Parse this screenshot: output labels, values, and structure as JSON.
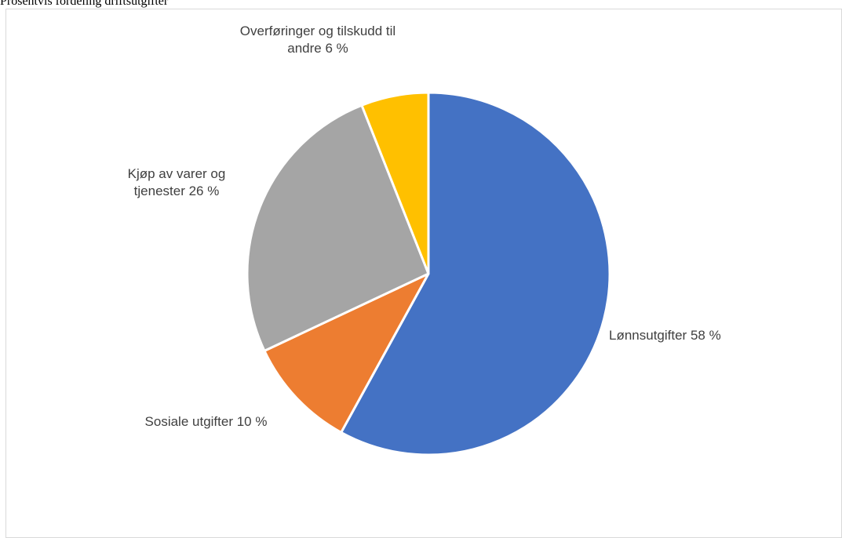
{
  "page": {
    "title": "Prosentvis fordeling driftsutgifter"
  },
  "chart_data": {
    "type": "pie",
    "title": "",
    "start_angle_deg": 0,
    "direction": "clockwise",
    "legend": "none",
    "slices": [
      {
        "label": "Lønnsutgifter 58 %",
        "category": "Lønnsutgifter",
        "value": 58,
        "color": "#4472C4"
      },
      {
        "label": "Sosiale utgifter 10 %",
        "category": "Sosiale utgifter",
        "value": 10,
        "color": "#ED7D31"
      },
      {
        "label": "Kjøp av varer og tjenester 26 %",
        "category": "Kjøp av varer og tjenester",
        "value": 26,
        "color": "#A5A5A5"
      },
      {
        "label": "Overføringer og tilskudd til andre 6 %",
        "category": "Overføringer og tilskudd til andre",
        "value": 6,
        "color": "#FFC000"
      }
    ]
  }
}
